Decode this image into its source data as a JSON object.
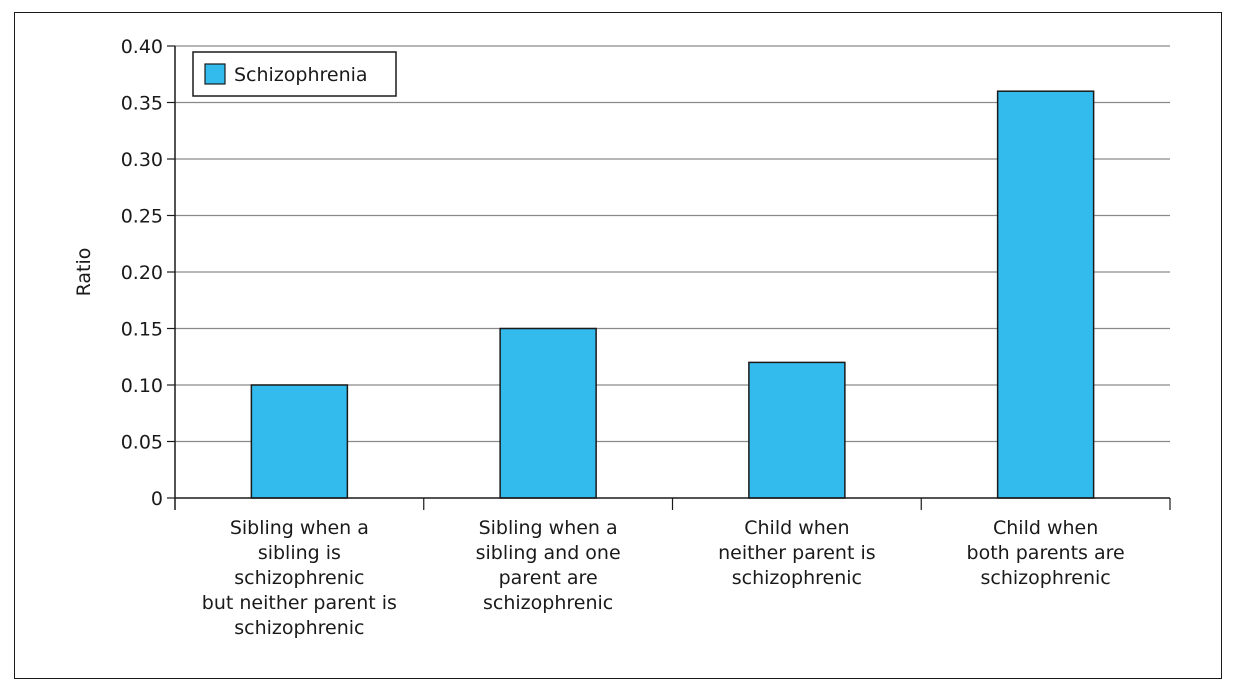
{
  "chart_data": {
    "type": "bar",
    "categories": [
      "Sibling when a sibling is schizophrenic but neither parent is schizophrenic",
      "Sibling when a sibling and one parent are schizophrenic",
      "Child when neither parent is schizophrenic",
      "Child when both parents are schizophrenic"
    ],
    "category_lines": [
      [
        "Sibling when a",
        "sibling is",
        "schizophrenic",
        "but neither parent is",
        "schizophrenic"
      ],
      [
        "Sibling when a",
        "sibling and one",
        "parent are",
        "schizophrenic"
      ],
      [
        "Child when",
        "neither parent is",
        "schizophrenic"
      ],
      [
        "Child when",
        "both parents are",
        "schizophrenic"
      ]
    ],
    "series": [
      {
        "name": "Schizophrenia",
        "values": [
          0.1,
          0.15,
          0.12,
          0.36
        ],
        "color": "#33bbee"
      }
    ],
    "title": "",
    "xlabel": "",
    "ylabel": "Ratio",
    "ylim": [
      0,
      0.4
    ],
    "yticks": [
      "0",
      "0.05",
      "0.10",
      "0.15",
      "0.20",
      "0.25",
      "0.30",
      "0.35",
      "0.40"
    ],
    "grid": true,
    "legend_position": "top-left"
  }
}
